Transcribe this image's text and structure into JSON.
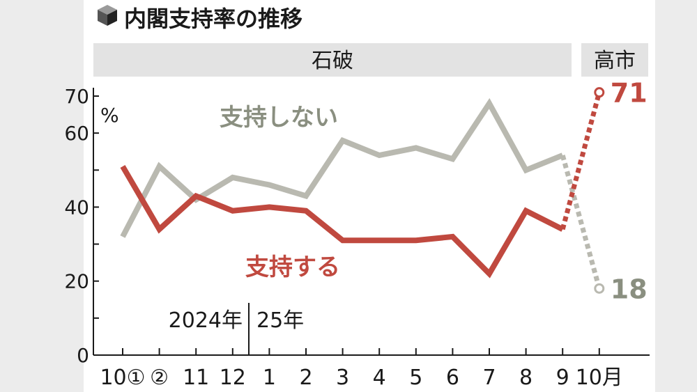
{
  "title": "内閣支持率の推移",
  "icon": "cube-icon",
  "eras": [
    {
      "label": "石破"
    },
    {
      "label": "高市"
    }
  ],
  "year_labels": [
    "2024年",
    "25年"
  ],
  "colors": {
    "support": "#c0493f",
    "oppose": "#b9b9b0",
    "oppose_text": "#8a8f80",
    "band": "#e3e3e3",
    "axis": "#1a1a1a"
  },
  "chart_data": {
    "type": "line",
    "ylabel": "%",
    "ylim": [
      0,
      70
    ],
    "yticks": [
      0,
      20,
      40,
      60,
      70
    ],
    "categories": [
      "10①",
      "②",
      "11",
      "12",
      "1",
      "2",
      "3",
      "4",
      "5",
      "6",
      "7",
      "8",
      "9",
      "10月"
    ],
    "series": [
      {
        "name": "支持する",
        "values": [
          51,
          34,
          43,
          39,
          40,
          39,
          31,
          31,
          31,
          32,
          22,
          39,
          34,
          71
        ],
        "end_label": "71"
      },
      {
        "name": "支持しない",
        "values": [
          32,
          51,
          42,
          48,
          46,
          43,
          58,
          54,
          56,
          53,
          68,
          50,
          54,
          18
        ],
        "end_label": "18"
      }
    ],
    "dashed_last_segment": true,
    "grid": false
  }
}
